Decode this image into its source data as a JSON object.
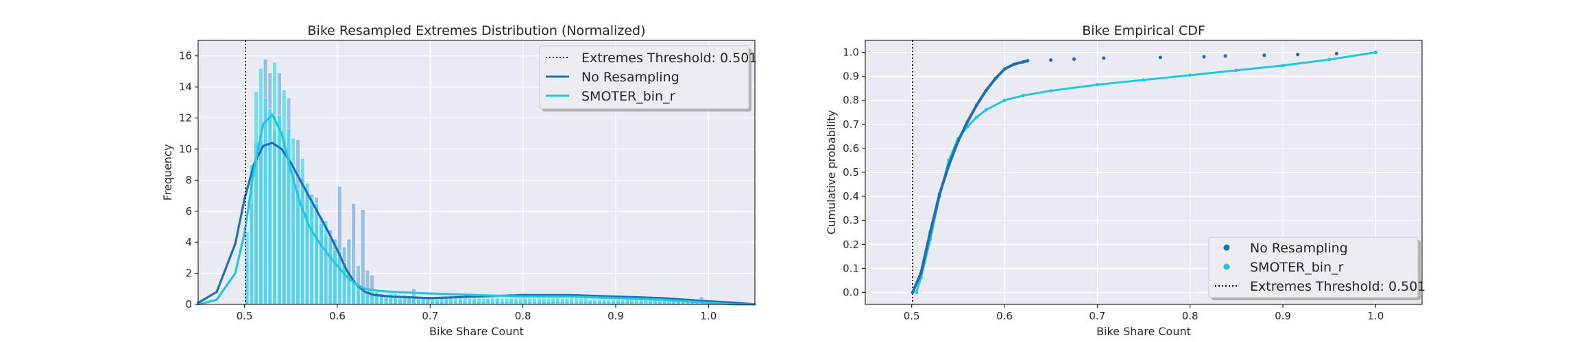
{
  "colors": {
    "background": "#eaeaf2",
    "grid": "#ffffff",
    "no_resampling": "#1f6fb4",
    "no_resampling_hist": "#7ab3e0",
    "smoter": "#1ec8e0",
    "smoter_hist": "#3ed8f0",
    "threshold": "#000000"
  },
  "chart_data": [
    {
      "type": "histogram",
      "title": "Bike Resampled Extremes Distribution (Normalized)",
      "xlabel": "Bike Share Count",
      "ylabel": "Frequency",
      "xlim": [
        0.45,
        1.05
      ],
      "ylim": [
        0,
        17
      ],
      "xticks": [
        "0.5",
        "0.6",
        "0.7",
        "0.8",
        "0.9",
        "1.0"
      ],
      "yticks": [
        "0",
        "2",
        "4",
        "6",
        "8",
        "10",
        "12",
        "14",
        "16"
      ],
      "grid": true,
      "legend_position": "top-right",
      "legend": [
        {
          "label": "Extremes Threshold: 0.501",
          "style": "dotted"
        },
        {
          "label": "No Resampling",
          "style": "line"
        },
        {
          "label": "SMOTER_bin_r",
          "style": "line"
        }
      ],
      "threshold": 0.501,
      "bin_width": 0.005,
      "series": [
        {
          "name": "No Resampling",
          "bins_start": 0.5,
          "hist_values": [
            2.8,
            6.5,
            10.4,
            10.6,
            15.8,
            14.9,
            11.2,
            14.9,
            10.6,
            13.3,
            8.4,
            10.6,
            8.1,
            7.2,
            6.4,
            6.9,
            5.6,
            4.4,
            4.8,
            4.2,
            7.6,
            3.7,
            4.2,
            6.5,
            2.5,
            6.1,
            2.2,
            1.9,
            0.8,
            0.7,
            0.6,
            0.4,
            0.7,
            0.3,
            0.5,
            0.4,
            1.0,
            0.3,
            0.4,
            0.3,
            0.2,
            0.3,
            0.2,
            0.3,
            0.3,
            0.2,
            0.3,
            0.2,
            0.2,
            0.3,
            0.2,
            0.2,
            0.3,
            0.2,
            0.3,
            0.2,
            0.2,
            0.3,
            0.2,
            0.2,
            0.3,
            0.2,
            0.2,
            0.2,
            0.2,
            0.2,
            0.2,
            0.2,
            0.2,
            0.2,
            0.2,
            0.2,
            0.2,
            0.2,
            0.2,
            0.2,
            0.2,
            0.2,
            0.2,
            0.2,
            0.2,
            0.2,
            0.3,
            0.2,
            0.2,
            0.2,
            0.2,
            0.2,
            0.2,
            0.2,
            0.2,
            0.2,
            0.2,
            0.2,
            0.2,
            0.2,
            0.2,
            0.2,
            0.5,
            0.1
          ],
          "kde_x": [
            0.45,
            0.47,
            0.49,
            0.5,
            0.51,
            0.52,
            0.53,
            0.54,
            0.55,
            0.56,
            0.57,
            0.58,
            0.59,
            0.6,
            0.61,
            0.62,
            0.63,
            0.64,
            0.66,
            0.7,
            0.75,
            0.8,
            0.85,
            0.9,
            0.95,
            1.0,
            1.03,
            1.05
          ],
          "kde_y": [
            0.1,
            0.8,
            3.9,
            6.8,
            9.0,
            10.2,
            10.4,
            10.0,
            9.1,
            8.0,
            6.9,
            5.8,
            4.7,
            3.5,
            2.2,
            1.3,
            0.8,
            0.6,
            0.5,
            0.4,
            0.5,
            0.6,
            0.6,
            0.5,
            0.4,
            0.2,
            0.1,
            0.0
          ]
        },
        {
          "name": "SMOTER_bin_r",
          "bins_start": 0.5,
          "hist_values": [
            4.7,
            9.0,
            13.7,
            15.2,
            13.3,
            12.6,
            15.6,
            12.2,
            13.8,
            11.3,
            10.7,
            7.4,
            9.4,
            7.8,
            7.1,
            6.5,
            5.2,
            5.4,
            4.3,
            3.5,
            3.4,
            2.7,
            2.0,
            1.6,
            1.2,
            1.0,
            0.9,
            0.8,
            0.8,
            0.7,
            0.6,
            0.7,
            0.6,
            0.5,
            0.6,
            0.5,
            0.5,
            0.5,
            0.5,
            0.4,
            0.4,
            0.4,
            0.4,
            0.4,
            0.4,
            0.4,
            0.4,
            0.4,
            0.4,
            0.4,
            0.4,
            0.4,
            0.4,
            0.4,
            0.4,
            0.4,
            0.4,
            0.4,
            0.4,
            0.4,
            0.4,
            0.4,
            0.4,
            0.4,
            0.4,
            0.4,
            0.4,
            0.4,
            0.4,
            0.4,
            0.4,
            0.4,
            0.4,
            0.4,
            0.3,
            0.3,
            0.3,
            0.3,
            0.3,
            0.3,
            0.3,
            0.3,
            0.3,
            0.3,
            0.3,
            0.3,
            0.3,
            0.3,
            0.3,
            0.3,
            0.3,
            0.3,
            0.2,
            0.2,
            0.2,
            0.2,
            0.2,
            0.2,
            0.2,
            0.1
          ],
          "kde_x": [
            0.45,
            0.47,
            0.49,
            0.5,
            0.51,
            0.52,
            0.53,
            0.54,
            0.55,
            0.56,
            0.57,
            0.58,
            0.59,
            0.6,
            0.61,
            0.62,
            0.63,
            0.64,
            0.66,
            0.7,
            0.75,
            0.8,
            0.85,
            0.9,
            0.95,
            1.0,
            1.03,
            1.05
          ],
          "kde_y": [
            0.0,
            0.3,
            2.0,
            4.6,
            8.6,
            11.6,
            12.2,
            11.0,
            8.6,
            6.5,
            5.0,
            4.0,
            3.2,
            2.5,
            1.8,
            1.3,
            1.0,
            0.9,
            0.8,
            0.7,
            0.6,
            0.5,
            0.5,
            0.4,
            0.3,
            0.1,
            0.0,
            0.0
          ]
        }
      ]
    },
    {
      "type": "line",
      "title": "Bike Empirical CDF",
      "xlabel": "Bike Share Count",
      "ylabel": "Cumulative probability",
      "xlim": [
        0.45,
        1.05
      ],
      "ylim": [
        -0.05,
        1.05
      ],
      "xticks": [
        "0.5",
        "0.6",
        "0.7",
        "0.8",
        "0.9",
        "1.0"
      ],
      "yticks": [
        "0.0",
        "0.1",
        "0.2",
        "0.3",
        "0.4",
        "0.5",
        "0.6",
        "0.7",
        "0.8",
        "0.9",
        "1.0"
      ],
      "grid": true,
      "legend_position": "bottom-right",
      "legend": [
        {
          "label": "No Resampling",
          "style": "marker"
        },
        {
          "label": "SMOTER_bin_r",
          "style": "marker"
        },
        {
          "label": "Extremes Threshold: 0.501",
          "style": "dotted"
        }
      ],
      "threshold": 0.501,
      "series": [
        {
          "name": "No Resampling",
          "x": [
            0.501,
            0.51,
            0.52,
            0.53,
            0.54,
            0.55,
            0.56,
            0.57,
            0.58,
            0.59,
            0.6,
            0.61,
            0.62,
            0.625
          ],
          "y": [
            0.0,
            0.08,
            0.25,
            0.41,
            0.53,
            0.63,
            0.71,
            0.78,
            0.84,
            0.89,
            0.93,
            0.95,
            0.96,
            0.965
          ],
          "outliers_x": [
            0.65,
            0.675,
            0.707,
            0.768,
            0.815,
            0.838,
            0.88,
            0.916,
            0.958,
            1.0
          ],
          "outliers_y": [
            0.968,
            0.972,
            0.976,
            0.979,
            0.982,
            0.985,
            0.988,
            0.991,
            0.995,
            1.0
          ]
        },
        {
          "name": "SMOTER_bin_r",
          "x": [
            0.505,
            0.51,
            0.52,
            0.53,
            0.54,
            0.55,
            0.56,
            0.57,
            0.58,
            0.6,
            0.62,
            0.65,
            0.7,
            0.75,
            0.8,
            0.85,
            0.9,
            0.95,
            1.0
          ],
          "y": [
            0.0,
            0.06,
            0.22,
            0.4,
            0.55,
            0.64,
            0.69,
            0.73,
            0.76,
            0.8,
            0.82,
            0.84,
            0.865,
            0.885,
            0.905,
            0.925,
            0.945,
            0.97,
            1.0
          ]
        }
      ]
    }
  ]
}
